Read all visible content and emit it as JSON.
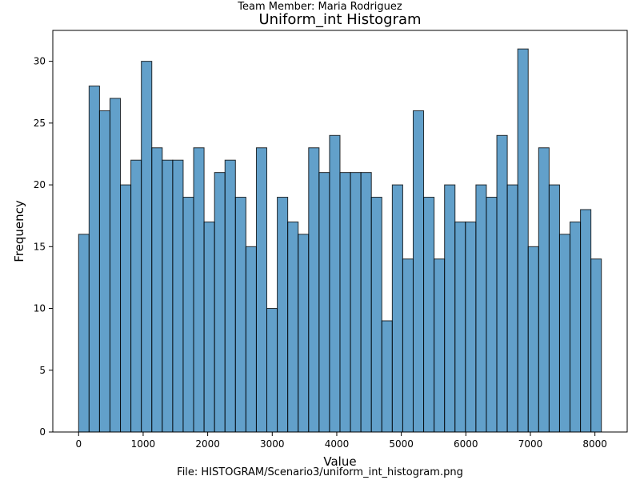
{
  "header_text": "Team Member: Maria Rodriguez",
  "footer_text": "File: HISTOGRAM/Scenario3/uniform_int_histogram.png",
  "chart_data": {
    "type": "bar",
    "title": "Uniform_int Histogram",
    "xlabel": "Value",
    "ylabel": "Frequency",
    "bin_start": 0,
    "bin_width": 162,
    "values": [
      16,
      28,
      26,
      27,
      20,
      22,
      30,
      23,
      22,
      22,
      19,
      23,
      17,
      21,
      22,
      19,
      15,
      23,
      10,
      19,
      17,
      16,
      23,
      21,
      24,
      21,
      21,
      21,
      19,
      9,
      20,
      14,
      26,
      19,
      14,
      20,
      17,
      17,
      20,
      19,
      24,
      20,
      31,
      15,
      23,
      20,
      16,
      17,
      18,
      14
    ],
    "xlim": [
      -400,
      8500
    ],
    "ylim": [
      0,
      32.5
    ],
    "xticks": [
      0,
      1000,
      2000,
      3000,
      4000,
      5000,
      6000,
      7000,
      8000
    ],
    "yticks": [
      0,
      5,
      10,
      15,
      20,
      25,
      30
    ],
    "grid": false,
    "legend": "none",
    "bar_color": "#1f77b4",
    "bar_alpha": 0.7,
    "edge_color": "#000000"
  }
}
